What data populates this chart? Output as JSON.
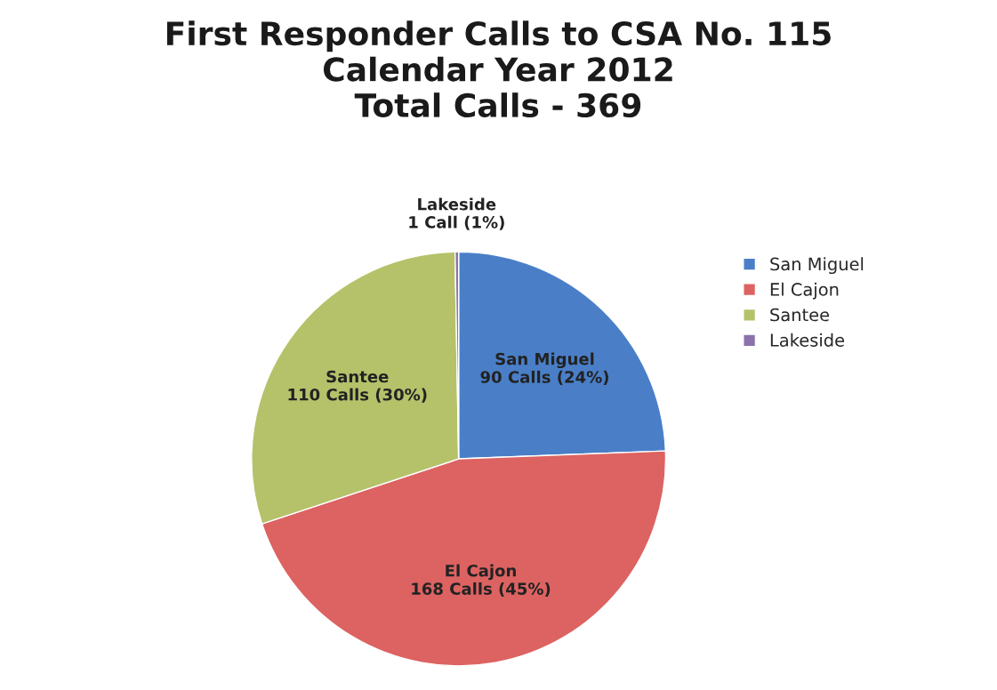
{
  "chart_data": {
    "type": "pie",
    "title": "First Responder Calls to CSA No. 115\nCalendar Year 2012\nTotal Calls - 369",
    "categories": [
      "San Miguel",
      "El Cajon",
      "Santee",
      "Lakeside"
    ],
    "values": [
      90,
      168,
      110,
      1
    ],
    "value_labels": [
      "90 Calls (24%)",
      "168 Calls (45%)",
      "110 Calls (30%)",
      "1 Call (1%)"
    ],
    "colors": [
      "#4a7fc8",
      "#dc6362",
      "#b5c26a",
      "#8a72aa"
    ],
    "legend": "right"
  }
}
